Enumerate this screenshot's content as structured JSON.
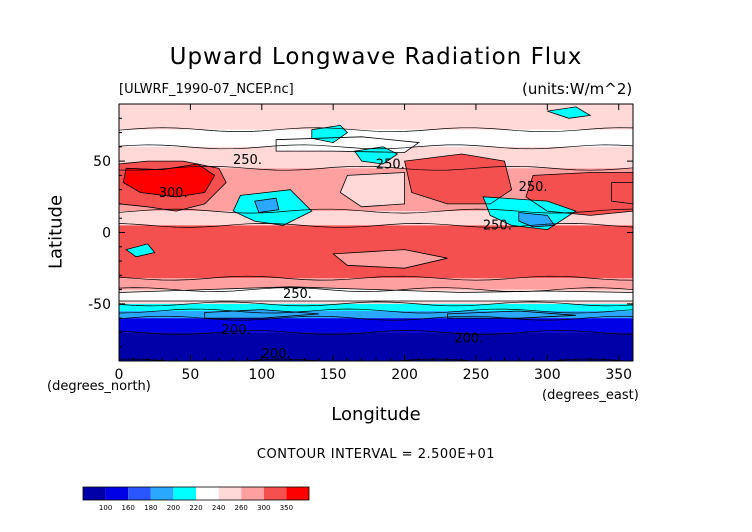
{
  "chart_data": {
    "type": "heatmap",
    "title": "Upward Longwave Radiation Flux",
    "subtitle_left": "[ULWRF_1990-07_NCEP.nc]",
    "subtitle_right": "(units:W/m^2)",
    "xlabel": "Longitude",
    "ylabel": "Latitude",
    "x_units": "(degrees_east)",
    "y_units": "(degrees_north)",
    "xlim": [
      0,
      360
    ],
    "ylim": [
      -90,
      90
    ],
    "x_ticks": [
      0,
      50,
      100,
      150,
      200,
      250,
      300,
      350
    ],
    "y_ticks": [
      -50,
      0,
      50
    ],
    "contour_interval_text": "CONTOUR INTERVAL = 2.500E+01",
    "contour_labels": [
      {
        "text": "250.",
        "lon": 90,
        "lat": 48
      },
      {
        "text": "300.",
        "lon": 38,
        "lat": 25
      },
      {
        "text": "250.",
        "lon": 190,
        "lat": 45
      },
      {
        "text": "250.",
        "lon": 290,
        "lat": 29
      },
      {
        "text": "250.",
        "lon": 265,
        "lat": 2
      },
      {
        "text": "250.",
        "lon": 125,
        "lat": -46
      },
      {
        "text": "200.",
        "lon": 82,
        "lat": -71
      },
      {
        "text": "200.",
        "lon": 245,
        "lat": -77
      },
      {
        "text": "200.",
        "lon": 110,
        "lat": -88
      }
    ],
    "colorbar": {
      "levels": [
        "100",
        "160",
        "180",
        "200",
        "220",
        "240",
        "260",
        "300",
        "350"
      ],
      "colors": [
        "#0000a8",
        "#0000e6",
        "#2a56ff",
        "#2aa8ff",
        "#00ffff",
        "#ffffff",
        "#ffd8d8",
        "#ffa0a0",
        "#f55050",
        "#ff0000"
      ]
    },
    "zonal_bands": [
      {
        "lat_from": 90,
        "lat_to": 72,
        "color": "#ffd8d8"
      },
      {
        "lat_from": 72,
        "lat_to": 60,
        "color": "#ffffff"
      },
      {
        "lat_from": 60,
        "lat_to": 45,
        "color": "#ffd8d8"
      },
      {
        "lat_from": 45,
        "lat_to": 15,
        "color": "#ffa0a0"
      },
      {
        "lat_from": 15,
        "lat_to": 5,
        "color": "#ffd8d8"
      },
      {
        "lat_from": 5,
        "lat_to": -32,
        "color": "#f55050"
      },
      {
        "lat_from": -32,
        "lat_to": -40,
        "color": "#ffa0a0"
      },
      {
        "lat_from": -40,
        "lat_to": -50,
        "color": "#ffd8d8"
      },
      {
        "lat_from": -50,
        "lat_to": -55,
        "color": "#00ffff"
      },
      {
        "lat_from": -55,
        "lat_to": -60,
        "color": "#2aa8ff"
      },
      {
        "lat_from": -60,
        "lat_to": -70,
        "color": "#0000e6"
      },
      {
        "lat_from": -70,
        "lat_to": -90,
        "color": "#0000a8"
      }
    ],
    "regions": [
      {
        "color": "#f55050",
        "pts": [
          [
            0,
            48
          ],
          [
            20,
            50
          ],
          [
            45,
            50
          ],
          [
            70,
            45
          ],
          [
            75,
            35
          ],
          [
            60,
            20
          ],
          [
            40,
            15
          ],
          [
            20,
            18
          ],
          [
            0,
            20
          ]
        ]
      },
      {
        "color": "#ff0000",
        "pts": [
          [
            5,
            45
          ],
          [
            30,
            44
          ],
          [
            55,
            48
          ],
          [
            67,
            40
          ],
          [
            60,
            28
          ],
          [
            40,
            25
          ],
          [
            15,
            28
          ],
          [
            3,
            35
          ]
        ]
      },
      {
        "color": "#ff0000",
        "pts": [
          [
            345,
            35
          ],
          [
            360,
            35
          ],
          [
            360,
            20
          ],
          [
            345,
            22
          ]
        ]
      },
      {
        "color": "#f55050",
        "pts": [
          [
            290,
            40
          ],
          [
            330,
            42
          ],
          [
            360,
            42
          ],
          [
            360,
            15
          ],
          [
            330,
            12
          ],
          [
            300,
            15
          ],
          [
            285,
            25
          ]
        ]
      },
      {
        "color": "#f55050",
        "pts": [
          [
            200,
            50
          ],
          [
            240,
            55
          ],
          [
            270,
            50
          ],
          [
            275,
            30
          ],
          [
            260,
            20
          ],
          [
            230,
            20
          ],
          [
            205,
            28
          ]
        ]
      },
      {
        "color": "#ffd8d8",
        "pts": [
          [
            160,
            40
          ],
          [
            200,
            42
          ],
          [
            200,
            20
          ],
          [
            170,
            18
          ],
          [
            155,
            28
          ]
        ]
      },
      {
        "color": "#ffffff",
        "pts": [
          [
            110,
            65
          ],
          [
            170,
            67
          ],
          [
            210,
            63
          ],
          [
            200,
            56
          ],
          [
            150,
            57
          ],
          [
            110,
            57
          ]
        ]
      },
      {
        "color": "#00ffff",
        "pts": [
          [
            135,
            72
          ],
          [
            155,
            75
          ],
          [
            160,
            70
          ],
          [
            150,
            63
          ],
          [
            135,
            66
          ]
        ]
      },
      {
        "color": "#00ffff",
        "pts": [
          [
            165,
            57
          ],
          [
            185,
            60
          ],
          [
            195,
            55
          ],
          [
            185,
            48
          ],
          [
            170,
            50
          ]
        ]
      },
      {
        "color": "#00ffff",
        "pts": [
          [
            85,
            26
          ],
          [
            120,
            30
          ],
          [
            135,
            15
          ],
          [
            115,
            5
          ],
          [
            95,
            8
          ],
          [
            80,
            15
          ]
        ]
      },
      {
        "color": "#2aa8ff",
        "pts": [
          [
            95,
            22
          ],
          [
            110,
            24
          ],
          [
            112,
            16
          ],
          [
            98,
            14
          ]
        ]
      },
      {
        "color": "#00ffff",
        "pts": [
          [
            255,
            25
          ],
          [
            300,
            22
          ],
          [
            320,
            15
          ],
          [
            300,
            2
          ],
          [
            275,
            5
          ],
          [
            260,
            12
          ]
        ]
      },
      {
        "color": "#2aa8ff",
        "pts": [
          [
            280,
            14
          ],
          [
            300,
            12
          ],
          [
            305,
            5
          ],
          [
            290,
            4
          ],
          [
            280,
            8
          ]
        ]
      },
      {
        "color": "#00ffff",
        "pts": [
          [
            5,
            -12
          ],
          [
            20,
            -8
          ],
          [
            25,
            -14
          ],
          [
            12,
            -17
          ]
        ]
      },
      {
        "color": "#00ffff",
        "pts": [
          [
            300,
            85
          ],
          [
            320,
            88
          ],
          [
            330,
            82
          ],
          [
            315,
            80
          ]
        ]
      },
      {
        "color": "#ffa0a0",
        "pts": [
          [
            150,
            -15
          ],
          [
            200,
            -12
          ],
          [
            230,
            -18
          ],
          [
            200,
            -25
          ],
          [
            160,
            -23
          ]
        ]
      },
      {
        "color": "#ffffff",
        "pts": [
          [
            0,
            -42
          ],
          [
            60,
            -40
          ],
          [
            120,
            -38
          ],
          [
            180,
            -40
          ],
          [
            240,
            -42
          ],
          [
            300,
            -41
          ],
          [
            360,
            -42
          ],
          [
            360,
            -48
          ],
          [
            0,
            -48
          ]
        ]
      },
      {
        "color": "#2aa8ff",
        "pts": [
          [
            60,
            -56
          ],
          [
            100,
            -54
          ],
          [
            140,
            -57
          ],
          [
            100,
            -60
          ],
          [
            60,
            -60
          ]
        ]
      },
      {
        "color": "#2aa8ff",
        "pts": [
          [
            230,
            -57
          ],
          [
            280,
            -55
          ],
          [
            320,
            -58
          ],
          [
            280,
            -60
          ],
          [
            230,
            -60
          ]
        ]
      }
    ]
  }
}
